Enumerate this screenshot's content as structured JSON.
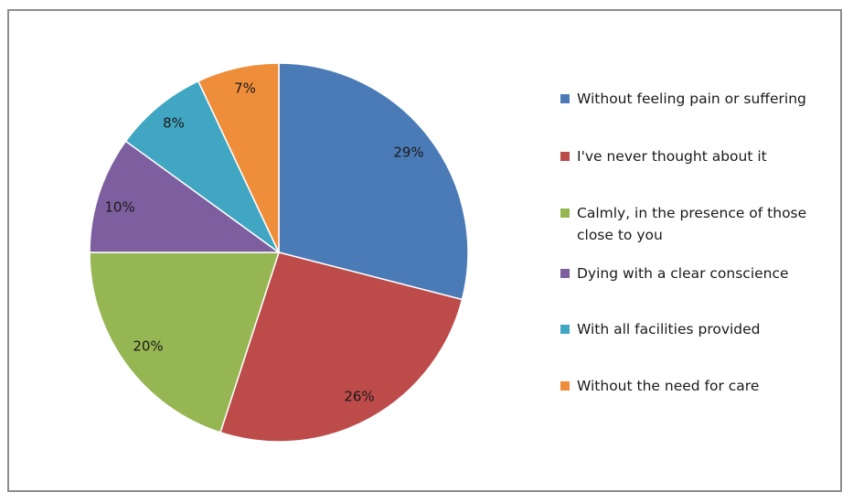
{
  "chart_data": {
    "type": "pie",
    "title": "",
    "legend_position": "right",
    "slices": [
      {
        "label": "Without feeling pain or suffering",
        "value": 29,
        "value_label": "29%",
        "color": "#4a7bb7"
      },
      {
        "label": "I've never thought about it",
        "value": 26,
        "value_label": "26%",
        "color": "#bc4b4a"
      },
      {
        "label": "Calmly, in the presence of those close to you",
        "value": 20,
        "value_label": "20%",
        "color": "#96b653"
      },
      {
        "label": "Dying with a clear conscience",
        "value": 10,
        "value_label": "10%",
        "color": "#7d5fa0"
      },
      {
        "label": "With all facilities provided",
        "value": 8,
        "value_label": "8%",
        "color": "#41a6c2"
      },
      {
        "label": "Without the need for care",
        "value": 7,
        "value_label": "7%",
        "color": "#ef8e3a"
      }
    ]
  }
}
